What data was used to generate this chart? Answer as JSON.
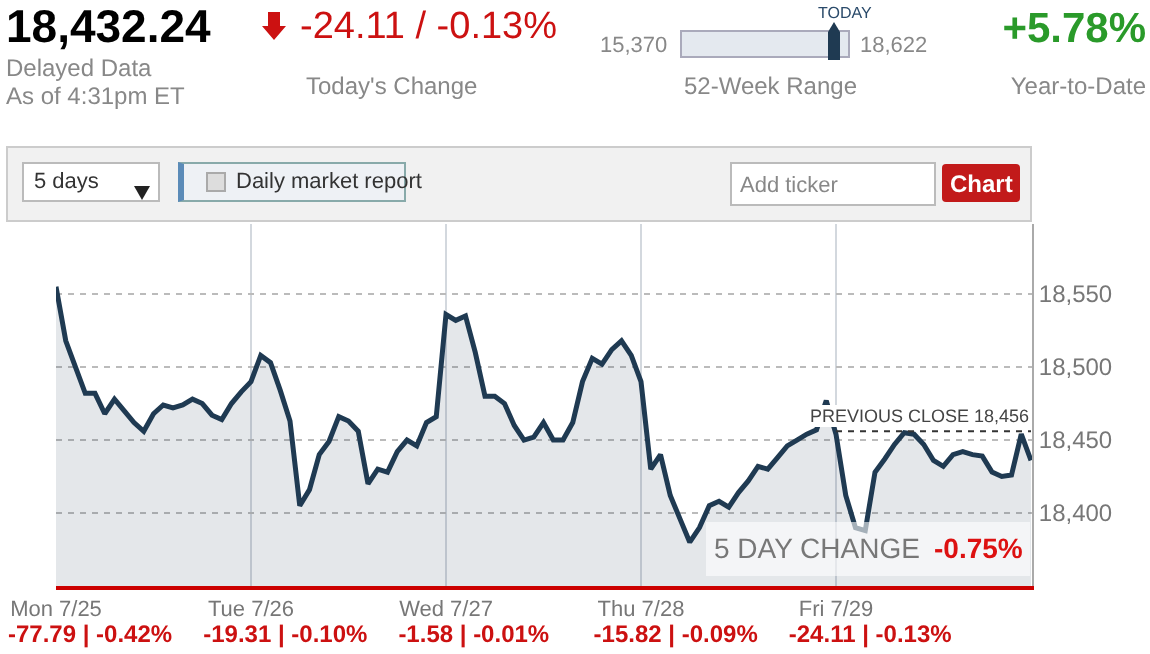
{
  "chart_data": {
    "type": "area",
    "title": "18,432.24",
    "annotations": [
      "Delayed Data",
      "As of 4:31pm ET",
      "-24.11 / -0.13%",
      "Today's Change",
      "15,370",
      "18,622",
      "TODAY",
      "52-Week Range",
      "+5.78%",
      "Year-to-Date",
      "5 days",
      "Daily market report",
      "Add ticker",
      "Chart",
      "5 DAY CHANGE",
      "-0.75%",
      "-77.79 | -0.42%",
      "-19.31 | -0.10%",
      "-1.58 | -0.01%",
      "-15.82 | -0.09%",
      "-24.11 | -0.13%"
    ],
    "categories": [
      "Mon 7/25",
      null,
      null,
      null,
      null,
      null,
      null,
      null,
      null,
      null,
      null,
      null,
      null,
      null,
      null,
      null,
      null,
      null,
      null,
      null,
      "Tue 7/26",
      null,
      null,
      null,
      null,
      null,
      null,
      null,
      null,
      null,
      null,
      null,
      null,
      null,
      null,
      null,
      null,
      null,
      null,
      null,
      "Wed 7/27",
      null,
      null,
      null,
      null,
      null,
      null,
      null,
      null,
      null,
      null,
      null,
      null,
      null,
      null,
      null,
      null,
      null,
      null,
      null,
      "Thu 7/28",
      null,
      null,
      null,
      null,
      null,
      null,
      null,
      null,
      null,
      null,
      null,
      null,
      null,
      null,
      null,
      null,
      null,
      null,
      null,
      "Fri 7/29",
      null,
      null,
      null,
      null,
      null,
      null,
      null,
      null,
      null,
      null,
      null,
      null,
      null,
      null,
      null,
      null,
      null,
      null,
      null,
      null
    ],
    "series": [
      {
        "color": "#1f3a52",
        "values": [
          18555,
          18518,
          18500,
          18482,
          18482,
          18468,
          18478,
          18470,
          18462,
          18456,
          18468,
          18474,
          18472,
          18474,
          18478,
          18475,
          18467,
          18464,
          18475,
          18483,
          18490,
          18508,
          18503,
          18484,
          18463,
          18405,
          18416,
          18440,
          18449,
          18466,
          18463,
          18456,
          18420,
          18430,
          18428,
          18442,
          18450,
          18446,
          18462,
          18466,
          18536,
          18532,
          18535,
          18510,
          18480,
          18480,
          18475,
          18460,
          18450,
          18452,
          18462,
          18450,
          18450,
          18462,
          18490,
          18506,
          18502,
          18512,
          18518,
          18508,
          18490,
          18430,
          18440,
          18412,
          18396,
          18380,
          18390,
          18405,
          18408,
          18404,
          18414,
          18422,
          18432,
          18430,
          18438,
          18446,
          18450,
          18454,
          18457,
          18477,
          18454,
          18412,
          18390,
          18388,
          18428,
          18437,
          18447,
          18455,
          18454,
          18447,
          18436,
          18432,
          18440,
          18442,
          18440,
          18439,
          18428,
          18425,
          18426,
          18454,
          18436
        ]
      }
    ],
    "ylim": [
      18350,
      18598
    ],
    "yticks": [
      {
        "value": 18400,
        "label": "18,400"
      },
      {
        "value": 18450,
        "label": "18,450"
      },
      {
        "value": 18500,
        "label": "18,500"
      },
      {
        "value": 18550,
        "label": "18,550"
      }
    ],
    "grid": true,
    "legend": false,
    "marker": "none",
    "line_style": "solid",
    "ref_lines": [
      {
        "axis": "y",
        "value": 18456,
        "label": "PREVIOUS CLOSE 18,456",
        "color": "#333333",
        "line_style": "dotted"
      }
    ]
  }
}
